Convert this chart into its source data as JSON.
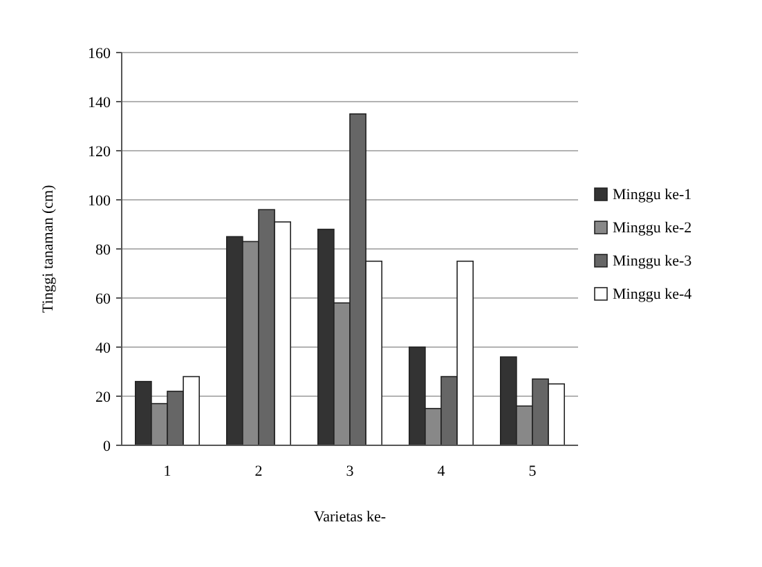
{
  "chart_data": {
    "type": "bar",
    "xlabel": "Varietas ke-",
    "ylabel": "Tinggi tanaman (cm)",
    "categories": [
      "1",
      "2",
      "3",
      "4",
      "5"
    ],
    "series": [
      {
        "name": "Minggu ke-1",
        "color": "#333333",
        "values": [
          26,
          85,
          88,
          40,
          36
        ]
      },
      {
        "name": "Minggu ke-2",
        "color": "#888888",
        "values": [
          17,
          83,
          58,
          15,
          16
        ]
      },
      {
        "name": "Minggu ke-3",
        "color": "#666666",
        "values": [
          22,
          96,
          135,
          28,
          27
        ]
      },
      {
        "name": "Minggu ke-4",
        "color": "#ffffff",
        "values": [
          28,
          91,
          75,
          75,
          25
        ]
      }
    ],
    "ylim": [
      0,
      160
    ],
    "yticks": [
      0,
      20,
      40,
      60,
      80,
      100,
      120,
      140,
      160
    ],
    "grid": "y",
    "legend": "right"
  }
}
